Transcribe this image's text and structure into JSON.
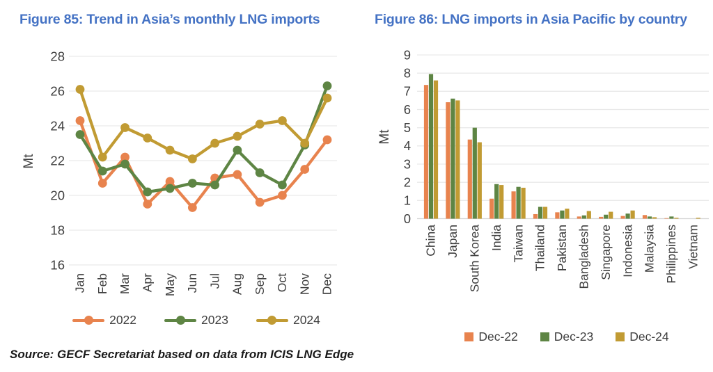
{
  "page": {
    "source_note": "Source: GECF Secretariat based on data from ICIS LNG Edge"
  },
  "colors": {
    "title_blue": "#4472C4",
    "orange": "#E8834E",
    "green": "#5E8544",
    "gold": "#C19B33",
    "grid": "#E9E9E9",
    "axis_line": "#D3D3D3",
    "axis_text": "#3F3F3F"
  },
  "chart_data": [
    {
      "type": "line",
      "title": "Figure 85: Trend in Asia’s monthly LNG imports",
      "ylabel": "Mt",
      "ylim": [
        16,
        28
      ],
      "ytick_step": 2,
      "grid": true,
      "legend_position": "bottom",
      "categories": [
        "Jan",
        "Feb",
        "Mar",
        "Apr",
        "May",
        "Jun",
        "Jul",
        "Aug",
        "Sep",
        "Oct",
        "Nov",
        "Dec"
      ],
      "series": [
        {
          "name": "2022",
          "color_key": "orange",
          "values": [
            24.3,
            20.7,
            22.2,
            19.5,
            20.8,
            19.3,
            21.0,
            21.2,
            19.6,
            20.0,
            21.5,
            23.2
          ]
        },
        {
          "name": "2023",
          "color_key": "green",
          "values": [
            23.5,
            21.4,
            21.8,
            20.2,
            20.4,
            20.7,
            20.6,
            22.6,
            21.3,
            20.6,
            22.9,
            26.3
          ]
        },
        {
          "name": "2024",
          "color_key": "gold",
          "values": [
            26.1,
            22.2,
            23.9,
            23.3,
            22.6,
            22.1,
            23.0,
            23.4,
            24.1,
            24.3,
            23.0,
            25.6
          ]
        }
      ]
    },
    {
      "type": "bar",
      "title": "Figure 86: LNG imports in Asia Pacific by country",
      "ylabel": "Mt",
      "ylim": [
        0,
        9
      ],
      "ytick_step": 1,
      "grid": true,
      "legend_position": "bottom",
      "categories": [
        "China",
        "Japan",
        "South Korea",
        "India",
        "Taiwan",
        "Thailand",
        "Pakistan",
        "Bangladesh",
        "Singapore",
        "Indonesia",
        "Malaysia",
        "Philippines",
        "Vietnam"
      ],
      "series": [
        {
          "name": "Dec-22",
          "color_key": "orange",
          "values": [
            7.35,
            6.4,
            4.35,
            1.1,
            1.5,
            0.25,
            0.35,
            0.12,
            0.1,
            0.15,
            0.2,
            0.03,
            0.0
          ]
        },
        {
          "name": "Dec-23",
          "color_key": "green",
          "values": [
            7.95,
            6.6,
            5.0,
            1.9,
            1.75,
            0.65,
            0.45,
            0.18,
            0.22,
            0.28,
            0.12,
            0.12,
            0.0
          ]
        },
        {
          "name": "Dec-24",
          "color_key": "gold",
          "values": [
            7.6,
            6.5,
            4.2,
            1.85,
            1.7,
            0.65,
            0.55,
            0.42,
            0.38,
            0.45,
            0.08,
            0.05,
            0.05
          ]
        }
      ]
    }
  ]
}
